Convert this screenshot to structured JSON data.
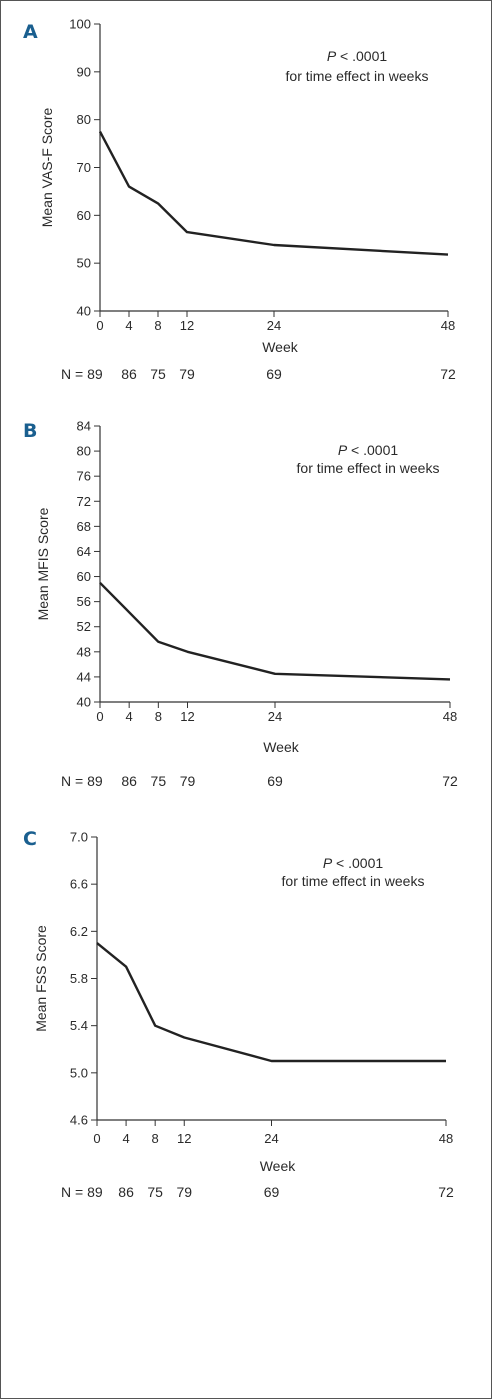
{
  "colors": {
    "line": "#222222",
    "axis": "#333333",
    "panel_letter": "#1a5f8f",
    "frame": "#555555"
  },
  "chart_data": [
    {
      "type": "line",
      "panel": "A",
      "ylabel": "Mean VAS-F Score",
      "xlabel": "Week",
      "x": [
        0,
        4,
        8,
        12,
        24,
        48
      ],
      "x_ticks": [
        "0",
        "4",
        "8",
        "12",
        "24",
        "48"
      ],
      "xlim": [
        0,
        48
      ],
      "y": [
        77.5,
        66,
        62.5,
        56.5,
        53.8,
        51.8
      ],
      "ylim": [
        40,
        100
      ],
      "y_ticks": [
        "40",
        "50",
        "60",
        "70",
        "80",
        "90",
        "100"
      ],
      "annotation": {
        "p": "P",
        "p_value": " < .0001",
        "line2": "for time effect in weeks"
      },
      "n_label": "N = 89",
      "n_values": [
        "86",
        "75",
        "79",
        "69",
        "72"
      ],
      "grid": false
    },
    {
      "type": "line",
      "panel": "B",
      "ylabel": "Mean MFIS Score",
      "xlabel": "Week",
      "x": [
        0,
        4,
        8,
        12,
        24,
        48
      ],
      "x_ticks": [
        "0",
        "4",
        "8",
        "12",
        "24",
        "48"
      ],
      "xlim": [
        0,
        48
      ],
      "y": [
        59,
        54.3,
        49.6,
        48,
        44.5,
        43.6
      ],
      "ylim": [
        40,
        84
      ],
      "y_ticks": [
        "40",
        "44",
        "48",
        "52",
        "56",
        "60",
        "64",
        "68",
        "72",
        "76",
        "80",
        "84"
      ],
      "annotation": {
        "p": "P",
        "p_value": " < .0001",
        "line2": "for time effect in weeks"
      },
      "n_label": "N = 89",
      "n_values": [
        "86",
        "75",
        "79",
        "69",
        "72"
      ],
      "grid": false
    },
    {
      "type": "line",
      "panel": "C",
      "ylabel": "Mean FSS Score",
      "xlabel": "Week",
      "x": [
        0,
        4,
        8,
        12,
        24,
        48
      ],
      "x_ticks": [
        "0",
        "4",
        "8",
        "12",
        "24",
        "48"
      ],
      "xlim": [
        0,
        48
      ],
      "y": [
        6.1,
        5.9,
        5.4,
        5.3,
        5.1,
        5.1
      ],
      "ylim": [
        4.6,
        7.0
      ],
      "y_ticks": [
        "4.6",
        "5.0",
        "5.4",
        "5.8",
        "6.2",
        "6.6",
        "7.0"
      ],
      "annotation": {
        "p": "P",
        "p_value": " < .0001",
        "line2": "for time effect in weeks"
      },
      "n_label": "N = 89",
      "n_values": [
        "86",
        "75",
        "79",
        "69",
        "72"
      ],
      "grid": false
    }
  ]
}
